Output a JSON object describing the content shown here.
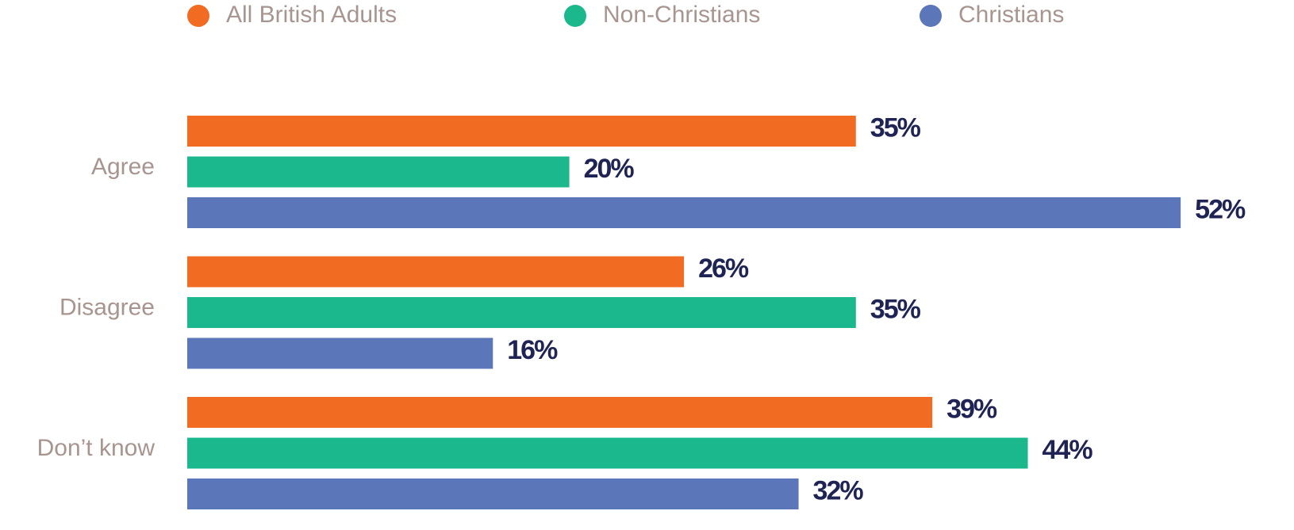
{
  "chart_data": {
    "type": "bar",
    "orientation": "horizontal",
    "categories": [
      "Agree",
      "Disagree",
      "Don’t know"
    ],
    "series": [
      {
        "name": "All British Adults",
        "color": "#f26b22",
        "values": [
          35,
          26,
          39
        ],
        "value_labels": [
          "35%",
          "26%",
          "39%"
        ]
      },
      {
        "name": "Non-Christians",
        "color": "#1ab88c",
        "values": [
          20,
          35,
          44
        ],
        "value_labels": [
          "20%",
          "35%",
          "44%"
        ]
      },
      {
        "name": "Christians",
        "color": "#5b76b9",
        "values": [
          52,
          16,
          32
        ],
        "value_labels": [
          "52%",
          "16%",
          "32%"
        ]
      }
    ]
  }
}
